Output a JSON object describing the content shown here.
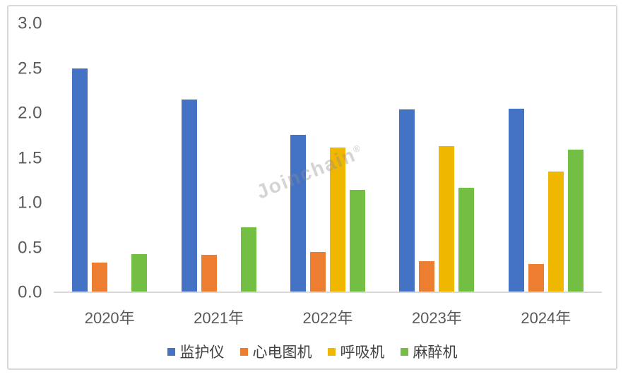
{
  "watermark": {
    "text": "Joinchain",
    "registered_mark": "®"
  },
  "chart_data": {
    "type": "bar",
    "categories": [
      "2020年",
      "2021年",
      "2022年",
      "2023年",
      "2024年"
    ],
    "series": [
      {
        "name": "监护仪",
        "color": "#4472C4",
        "values": [
          2.49,
          2.14,
          1.75,
          2.03,
          2.04
        ]
      },
      {
        "name": "心电图机",
        "color": "#ED7D31",
        "values": [
          0.32,
          0.41,
          0.44,
          0.34,
          0.31
        ]
      },
      {
        "name": "呼吸机",
        "color": "#EFB700",
        "values": [
          null,
          null,
          1.61,
          1.62,
          1.34
        ]
      },
      {
        "name": "麻醉机",
        "color": "#72BF44",
        "values": [
          0.42,
          0.72,
          1.13,
          1.16,
          1.58
        ]
      }
    ],
    "title": "",
    "xlabel": "",
    "ylabel": "",
    "y_axis": {
      "min": 0.0,
      "max": 3.0,
      "step": 0.5,
      "tick_labels": [
        "3.0",
        "2.5",
        "2.0",
        "1.5",
        "1.0",
        "0.5",
        "0.0"
      ]
    },
    "grid": false,
    "legend_position": "bottom"
  },
  "style": {
    "axis_color": "#D9D9D9",
    "tick_label_color": "#595959",
    "legend_text_color": "#424242",
    "watermark_color": "#8f8f8f"
  }
}
